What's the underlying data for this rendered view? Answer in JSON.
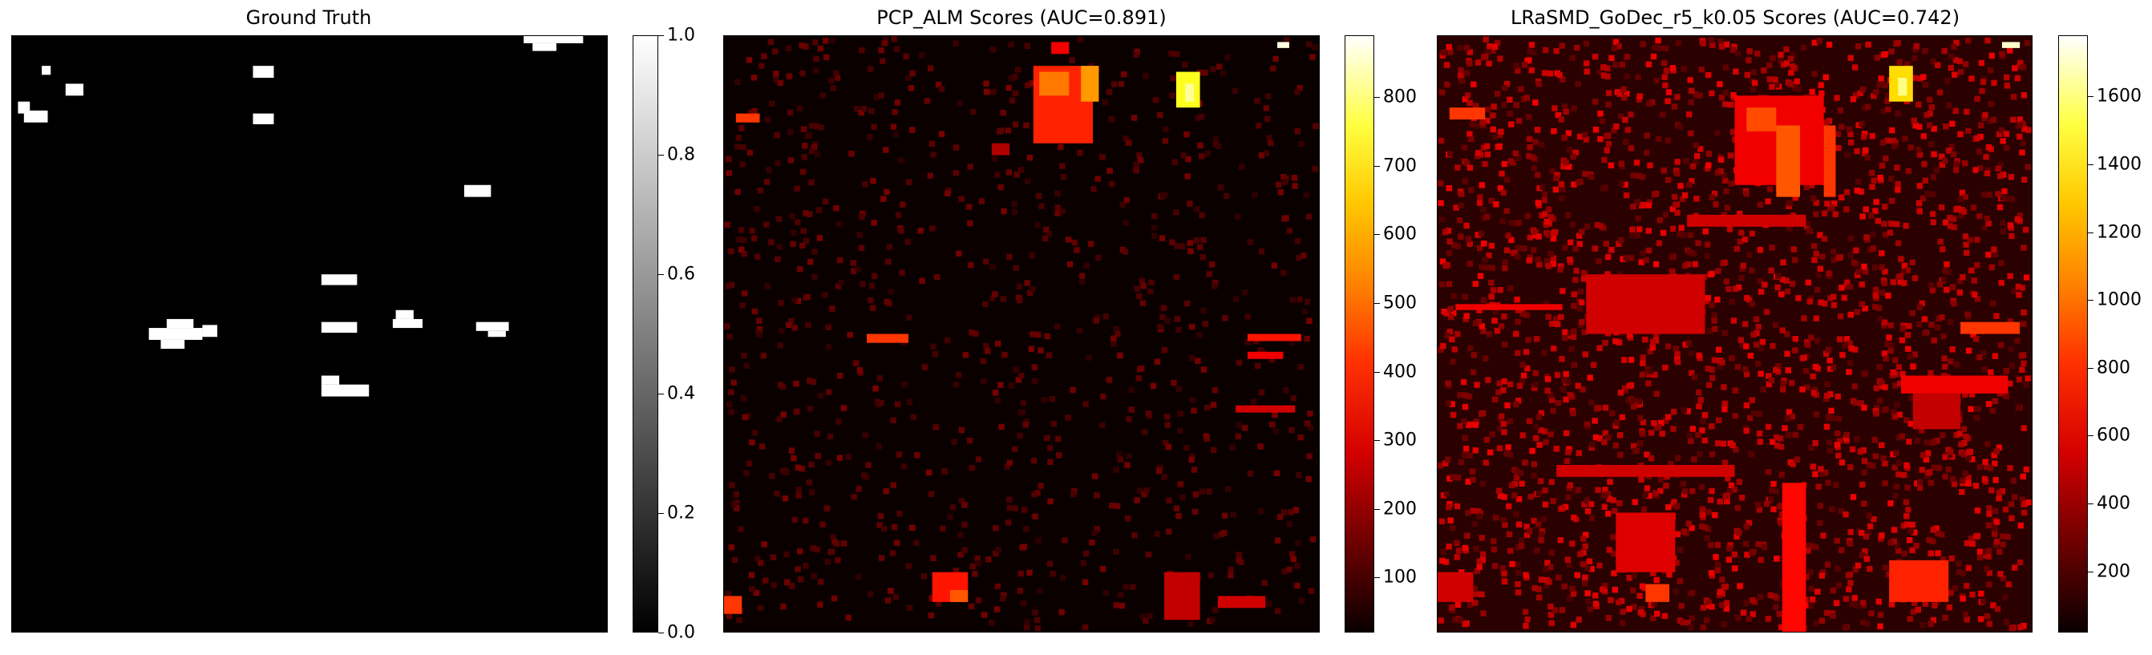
{
  "chart_data": [
    {
      "type": "heatmap",
      "title": "Ground Truth",
      "colormap": "gray",
      "colorbar": {
        "range": [
          0.0,
          1.0
        ],
        "ticks": [
          "0.0",
          "0.2",
          "0.4",
          "0.6",
          "0.8",
          "1.0"
        ]
      },
      "description_of_content": "binary anomaly mask: black background with small white anomaly blobs"
    },
    {
      "type": "heatmap",
      "title": "PCP_ALM Scores (AUC=0.891)",
      "colormap": "hot",
      "colorbar": {
        "range": [
          20,
          890
        ],
        "ticks": [
          "100",
          "200",
          "300",
          "400",
          "500",
          "600",
          "700",
          "800"
        ]
      }
    },
    {
      "type": "heatmap",
      "title": "LRaSMD_GoDec_r5_k0.05 Scores (AUC=0.742)",
      "colormap": "hot",
      "colorbar": {
        "range": [
          20,
          1780
        ],
        "ticks": [
          "200",
          "400",
          "600",
          "800",
          "1000",
          "1200",
          "1400",
          "1600"
        ]
      }
    }
  ],
  "colors": {
    "hot_low": "#0a0000",
    "hot_mid": "#ff2200",
    "hot_high": "#ffffff",
    "mask_fg": "#ffffff",
    "mask_bg": "#000000"
  }
}
